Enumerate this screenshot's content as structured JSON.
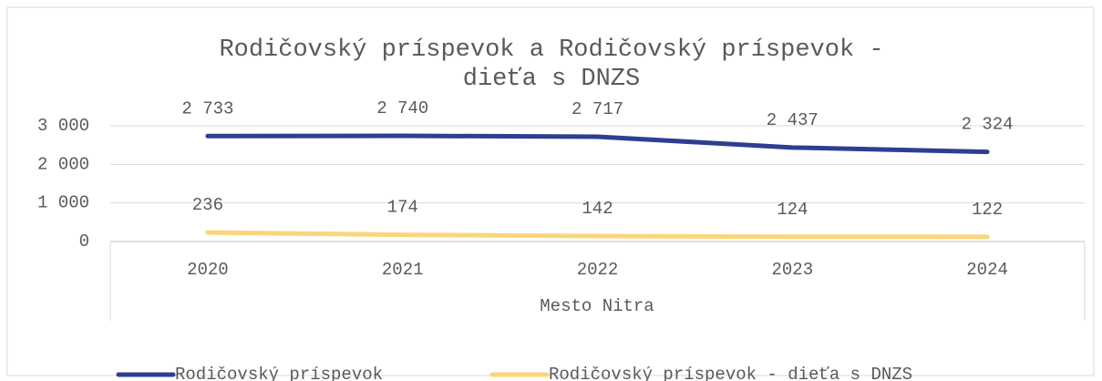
{
  "chart_data": {
    "type": "line",
    "title": "Rodičovský príspevok a Rodičovský príspevok -",
    "title_line2": "dieťa s DNZS",
    "categories": [
      "2020",
      "2021",
      "2022",
      "2023",
      "2024"
    ],
    "x_group_label": "Mesto Nitra",
    "series": [
      {
        "name": "Rodičovský príspevok",
        "color": "#2e3f91",
        "values": [
          2733,
          2740,
          2717,
          2437,
          2324
        ],
        "value_labels": [
          "2 733",
          "2 740",
          "2 717",
          "2 437",
          "2 324"
        ]
      },
      {
        "name": "Rodičovský príspevok - dieťa s DNZS",
        "color": "#fad57a",
        "values": [
          236,
          174,
          142,
          124,
          122
        ]
      }
    ],
    "ylim": [
      0,
      3000
    ],
    "yticks": [
      0,
      {
        "value": 1000,
        "label": "1 000"
      },
      {
        "value": 2000,
        "label": "2 000"
      },
      {
        "value": 3000,
        "label": "3 000"
      }
    ],
    "grid": true,
    "legend": "bottom"
  }
}
